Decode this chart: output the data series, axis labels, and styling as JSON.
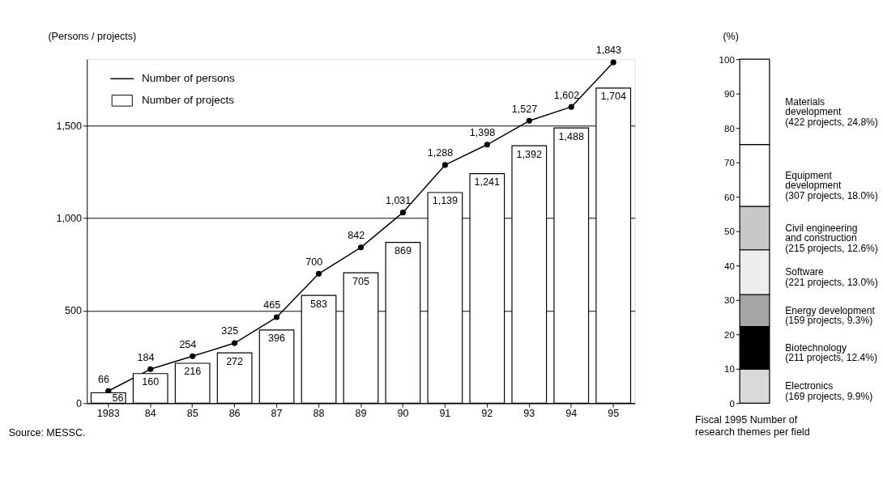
{
  "chart_data": [
    {
      "type": "bar",
      "ylabel": "(Persons / projects)",
      "categories": [
        "1983",
        "84",
        "85",
        "86",
        "87",
        "88",
        "89",
        "90",
        "91",
        "92",
        "93",
        "94",
        "95"
      ],
      "ylim": [
        0,
        1860
      ],
      "yticks": [
        0,
        500,
        {
          "value": 1000,
          "label": "1,000"
        },
        {
          "value": 1500,
          "label": "1,500"
        }
      ],
      "grid": "y",
      "legend": "top left",
      "marker": "circle",
      "line_style": "solid",
      "annotations": [
        "Source: MESSC."
      ],
      "series": [
        {
          "name": "Number of persons",
          "type": "line",
          "color": "#000000",
          "values": [
            66,
            184,
            254,
            325,
            465,
            700,
            842,
            1031,
            1288,
            1398,
            1527,
            1602,
            1843
          ],
          "value_labels": [
            "66",
            "184",
            "254",
            "325",
            "465",
            "700",
            "842",
            "1,031",
            "1,288",
            "1,398",
            "1,527",
            "1,602",
            "1,843"
          ]
        },
        {
          "name": "Number of projects",
          "type": "bar",
          "color": "#ffffff",
          "values": [
            56,
            160,
            216,
            272,
            396,
            583,
            705,
            869,
            1139,
            1241,
            1392,
            1488,
            1704
          ],
          "value_labels": [
            "56",
            "160",
            "216",
            "272",
            "396",
            "583",
            "705",
            "869",
            "1,139",
            "1,241",
            "1,392",
            "1,488",
            "1,704"
          ]
        }
      ]
    },
    {
      "type": "bar",
      "stacked": true,
      "ylabel": "(%)",
      "xlabel": "Fiscal 1995 Number of research themes per field",
      "categories": [
        null
      ],
      "ylim": [
        0,
        100
      ],
      "yticks": [
        0,
        10,
        20,
        30,
        40,
        50,
        60,
        70,
        80,
        90,
        100
      ],
      "series": [
        {
          "name": "Electronics (169 projects, 9.9%)",
          "color": "#d9d9d9",
          "values": [
            9.9
          ]
        },
        {
          "name": "Biotechnology (211 projects, 12.4%)",
          "color": "#000000",
          "values": [
            12.4
          ]
        },
        {
          "name": "Energy development (159 projects, 9.3%)",
          "color": "#a6a6a6",
          "values": [
            9.3
          ]
        },
        {
          "name": "Software (221 projects, 13.0%)",
          "color": "#eeeeee",
          "values": [
            13.0
          ]
        },
        {
          "name": "Civil engineering and construction (215 projects, 12.6%)",
          "color": "#c8c8c8",
          "values": [
            12.6
          ]
        },
        {
          "name": "Equipment development (307 projects, 18.0%)",
          "color": "#ffffff",
          "values": [
            18.0
          ]
        },
        {
          "name": "Materials development (422 projects, 24.8%)",
          "color": "#ffffff",
          "values": [
            24.8
          ]
        }
      ]
    }
  ]
}
